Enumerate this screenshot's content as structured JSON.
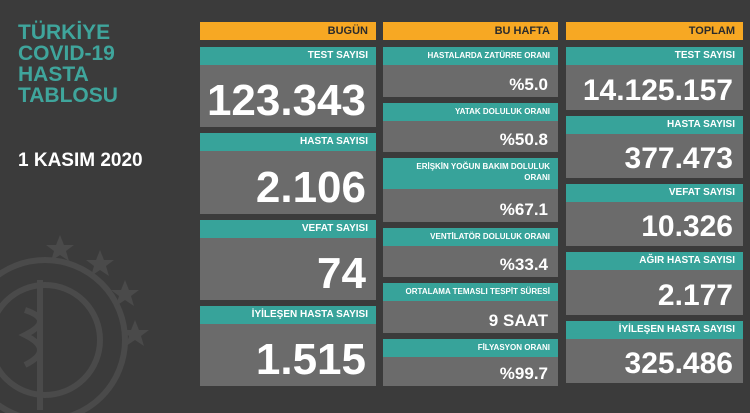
{
  "title_lines": [
    "TÜRKİYE",
    "COVID-19",
    "HASTA",
    "TABLOSU"
  ],
  "date": "1 KASIM 2020",
  "columns": [
    {
      "header": "BUGÜN",
      "items": [
        {
          "label": "TEST SAYISI",
          "value": "123.343"
        },
        {
          "label": "HASTA SAYISI",
          "value": "2.106"
        },
        {
          "label": "VEFAT SAYISI",
          "value": "74"
        },
        {
          "label": "İYİLEŞEN HASTA SAYISI",
          "value": "1.515"
        }
      ]
    },
    {
      "header": "BU HAFTA",
      "items": [
        {
          "label": "HASTALARDA ZATÜRRE ORANI",
          "value": "%5.0"
        },
        {
          "label": "YATAK DOLULUK ORANI",
          "value": "%50.8"
        },
        {
          "label": "ERİŞKİN YOĞUN BAKIM DOLULUK ORANI",
          "value": "%67.1"
        },
        {
          "label": "VENTİLATÖR DOLULUK ORANI",
          "value": "%33.4"
        },
        {
          "label": "ORTALAMA TEMASLI TESPİT SÜRESİ",
          "value": "9 SAAT"
        },
        {
          "label": "FİLYASYON ORANI",
          "value": "%99.7"
        }
      ]
    },
    {
      "header": "TOPLAM",
      "items": [
        {
          "label": "TEST SAYISI",
          "value": "14.125.157"
        },
        {
          "label": "HASTA SAYISI",
          "value": "377.473"
        },
        {
          "label": "VEFAT SAYISI",
          "value": "10.326"
        },
        {
          "label": "AĞIR HASTA SAYISI",
          "value": "2.177"
        },
        {
          "label": "İYİLEŞEN HASTA SAYISI",
          "value": "325.486"
        }
      ]
    }
  ]
}
